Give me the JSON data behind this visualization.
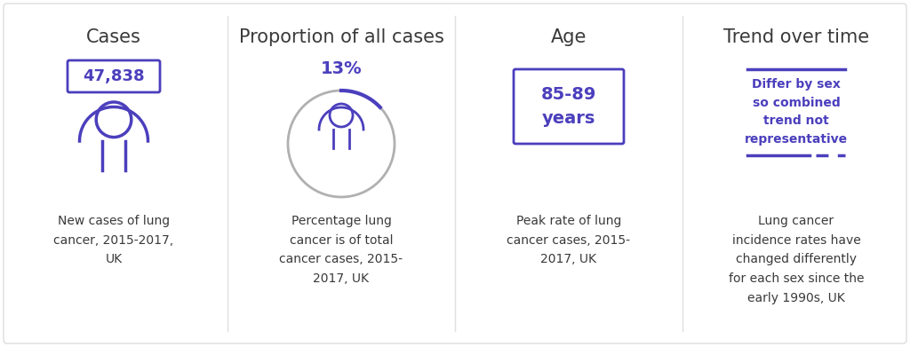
{
  "bg_color": "#ffffff",
  "purple": "#4b3fbd",
  "gray_circle": "#b0b0b0",
  "dark_text": "#3a3a3a",
  "divider_color": "#e0e0e0",
  "panels": [
    {
      "title": "Cases",
      "stat": "47,838",
      "description": "New cases of lung\ncancer, 2015-2017,\nUK"
    },
    {
      "title": "Proportion of all cases",
      "stat": "13%",
      "description": "Percentage lung\ncancer is of total\ncancer cases, 2015-\n2017, UK"
    },
    {
      "title": "Age",
      "stat": "85-89\nyears",
      "description": "Peak rate of lung\ncancer cases, 2015-\n2017, UK"
    },
    {
      "title": "Trend over time",
      "stat": "Differ by sex\nso combined\ntrend not\nrepresentative",
      "description": "Lung cancer\nincidence rates have\nchanged differently\nfor each sex since the\nearly 1990s, UK"
    }
  ]
}
